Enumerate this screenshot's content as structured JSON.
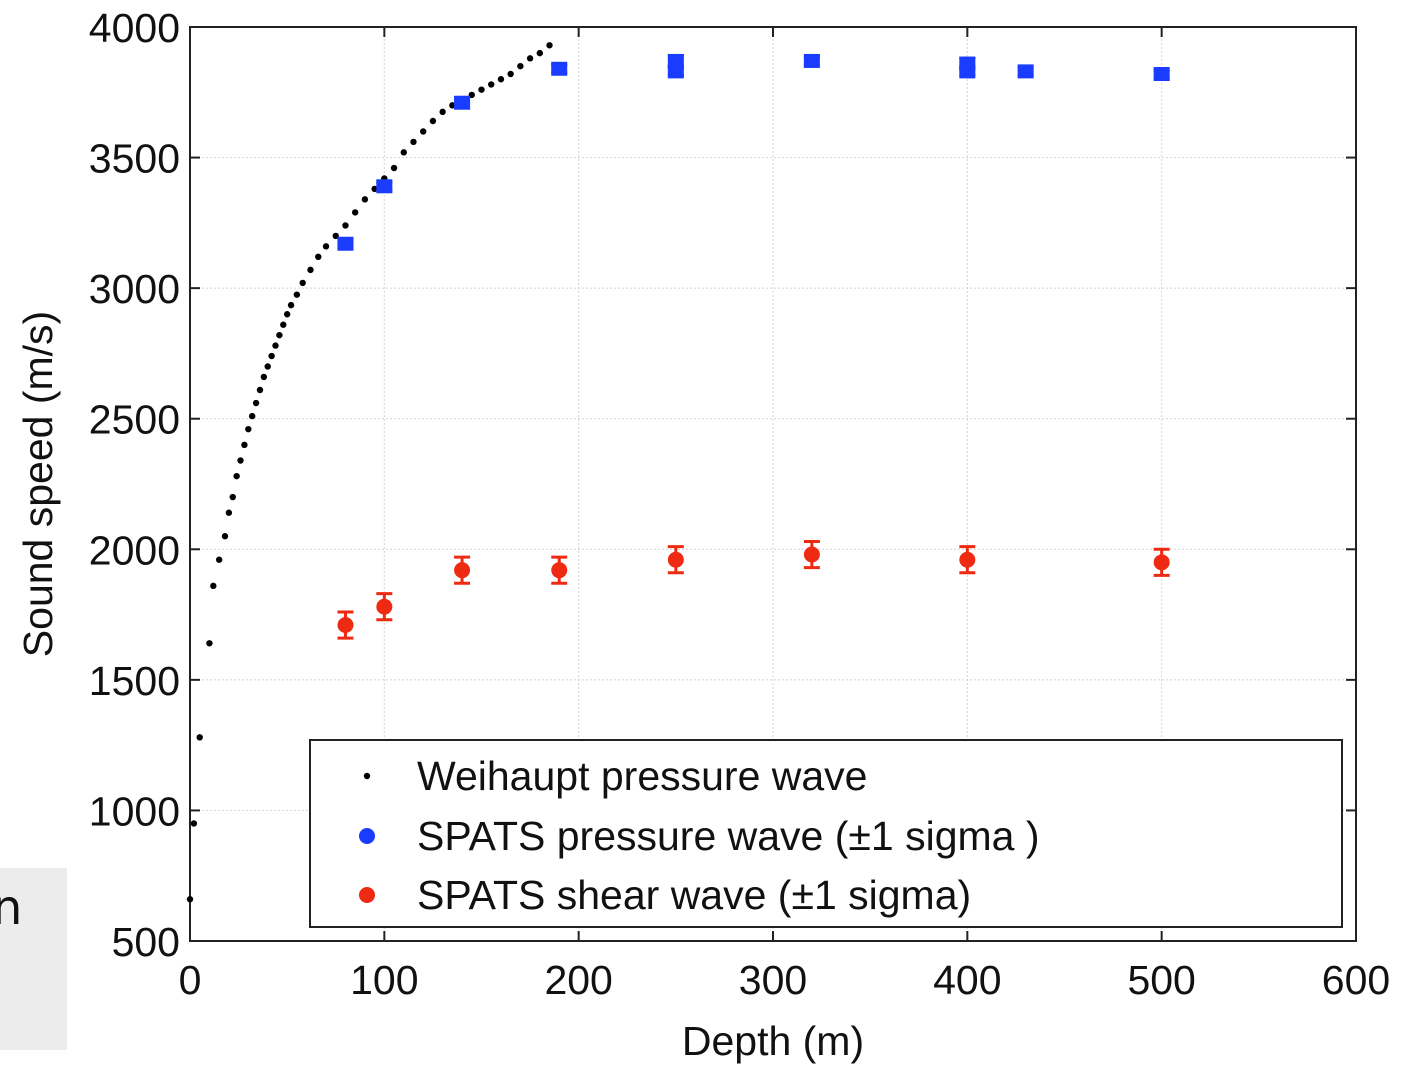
{
  "overlay": {
    "text": "n"
  },
  "chart_data": {
    "type": "scatter",
    "xlabel": "Depth (m)",
    "ylabel": "Sound speed (m/s)",
    "xlim": [
      0,
      600
    ],
    "ylim": [
      500,
      4000
    ],
    "xticks": [
      0,
      100,
      200,
      300,
      400,
      500,
      600
    ],
    "yticks": [
      500,
      1000,
      1500,
      2000,
      2500,
      3000,
      3500,
      4000
    ],
    "grid": true,
    "legend_position": "bottom-right",
    "series": [
      {
        "name": "Weihaupt pressure wave",
        "color": "#000000",
        "marker": "small-dot",
        "x": [
          0,
          2,
          5,
          10,
          12,
          15,
          18,
          20,
          22,
          24,
          26,
          28,
          30,
          32,
          34,
          36,
          38,
          40,
          42,
          44,
          46,
          48,
          50,
          52,
          55,
          58,
          62,
          66,
          70,
          75,
          80,
          85,
          90,
          95,
          100,
          105,
          110,
          115,
          120,
          125,
          130,
          135,
          140,
          145,
          150,
          155,
          160,
          165,
          170,
          175,
          180,
          185
        ],
        "y": [
          660,
          950,
          1280,
          1640,
          1860,
          1960,
          2050,
          2140,
          2200,
          2280,
          2340,
          2400,
          2460,
          2510,
          2560,
          2610,
          2660,
          2700,
          2740,
          2780,
          2820,
          2860,
          2900,
          2935,
          2975,
          3020,
          3070,
          3120,
          3160,
          3200,
          3240,
          3290,
          3340,
          3380,
          3420,
          3460,
          3520,
          3560,
          3600,
          3640,
          3675,
          3700,
          3720,
          3740,
          3760,
          3780,
          3800,
          3820,
          3850,
          3880,
          3900,
          3930
        ]
      },
      {
        "name": "SPATS pressure wave (±1 sigma )",
        "color": "#1a3cff",
        "marker": "square",
        "x": [
          80,
          100,
          140,
          190,
          250,
          250,
          320,
          400,
          400,
          430,
          500
        ],
        "y": [
          3170,
          3390,
          3710,
          3840,
          3870,
          3830,
          3870,
          3860,
          3830,
          3830,
          3820
        ],
        "err": [
          15,
          15,
          20,
          15,
          20,
          15,
          15,
          20,
          15,
          15,
          15
        ]
      },
      {
        "name": "SPATS shear wave (±1 sigma)",
        "color": "#ee2b12",
        "marker": "circle",
        "x": [
          80,
          100,
          140,
          190,
          250,
          320,
          400,
          500
        ],
        "y": [
          1710,
          1780,
          1920,
          1920,
          1960,
          1980,
          1960,
          1950
        ],
        "err": [
          50,
          50,
          50,
          50,
          50,
          50,
          50,
          50
        ]
      }
    ]
  }
}
